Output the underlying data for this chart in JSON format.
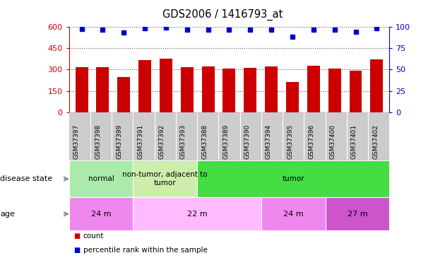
{
  "title": "GDS2006 / 1416793_at",
  "samples": [
    "GSM37397",
    "GSM37398",
    "GSM37399",
    "GSM37391",
    "GSM37392",
    "GSM37393",
    "GSM37388",
    "GSM37389",
    "GSM37390",
    "GSM37394",
    "GSM37395",
    "GSM37396",
    "GSM37400",
    "GSM37401",
    "GSM37402"
  ],
  "counts": [
    315,
    315,
    250,
    365,
    375,
    315,
    320,
    305,
    310,
    320,
    215,
    325,
    305,
    290,
    370
  ],
  "percentile": [
    97,
    96,
    93,
    98,
    99,
    96,
    96,
    96,
    96,
    96,
    88,
    96,
    96,
    94,
    98
  ],
  "ylim_left": [
    0,
    600
  ],
  "ylim_right": [
    0,
    100
  ],
  "yticks_left": [
    0,
    150,
    300,
    450,
    600
  ],
  "yticks_right": [
    0,
    25,
    50,
    75,
    100
  ],
  "bar_color": "#cc0000",
  "dot_color": "#0000cc",
  "disease_state_groups": [
    {
      "label": "normal",
      "start": 0,
      "end": 3,
      "color": "#aaeaaa"
    },
    {
      "label": "non-tumor, adjacent to\ntumor",
      "start": 3,
      "end": 6,
      "color": "#cceeaa"
    },
    {
      "label": "tumor",
      "start": 6,
      "end": 15,
      "color": "#44dd44"
    }
  ],
  "age_groups": [
    {
      "label": "24 m",
      "start": 0,
      "end": 3,
      "color": "#ee88ee"
    },
    {
      "label": "22 m",
      "start": 3,
      "end": 9,
      "color": "#ffbbff"
    },
    {
      "label": "24 m",
      "start": 9,
      "end": 12,
      "color": "#ee88ee"
    },
    {
      "label": "27 m",
      "start": 12,
      "end": 15,
      "color": "#cc55cc"
    }
  ],
  "legend_count_color": "#cc0000",
  "legend_pct_color": "#0000cc",
  "row_label_disease": "disease state",
  "row_label_age": "age",
  "grid_color": "#555555",
  "xtick_bg": "#cccccc",
  "fig_width": 6.3,
  "fig_height": 3.75,
  "fig_dpi": 100
}
